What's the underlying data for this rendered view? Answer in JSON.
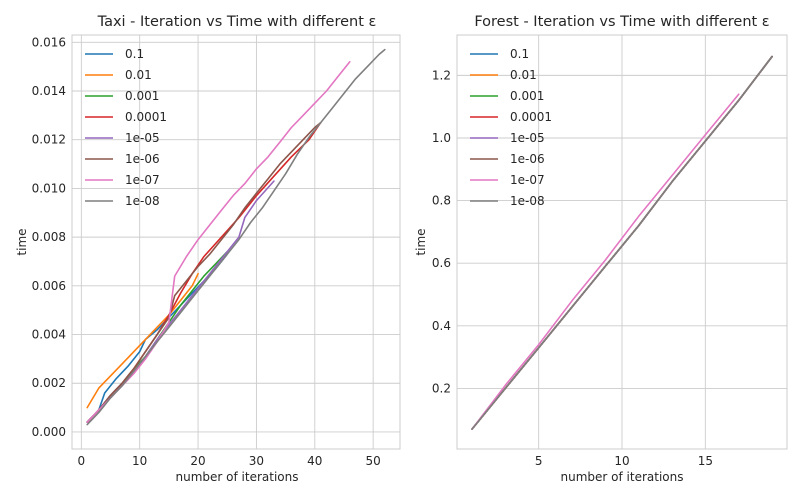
{
  "colors": [
    "#1f77b4",
    "#ff7f0e",
    "#2ca02c",
    "#d62728",
    "#9467bd",
    "#8c564b",
    "#e377c2",
    "#7f7f7f"
  ],
  "chart_data": [
    {
      "type": "line",
      "title": "Taxi - Iteration vs Time with different ε",
      "xlabel": "number of iterations",
      "ylabel": "time",
      "xlim": [
        -1.6,
        54.6
      ],
      "ylim": [
        -0.0007,
        0.0163
      ],
      "xticks": [
        0,
        10,
        20,
        30,
        40,
        50
      ],
      "yticks": [
        0.0,
        0.002,
        0.004,
        0.006,
        0.008,
        0.01,
        0.012,
        0.014,
        0.016
      ],
      "ytick_labels": [
        "0.000",
        "0.002",
        "0.004",
        "0.006",
        "0.008",
        "0.010",
        "0.012",
        "0.014",
        "0.016"
      ],
      "grid": true,
      "legend": "upper left",
      "series": [
        {
          "name": "0.1",
          "points": [
            [
              1,
              0.0004
            ],
            [
              3,
              0.0009
            ],
            [
              4,
              0.0016
            ],
            [
              6,
              0.0022
            ],
            [
              8,
              0.0027
            ],
            [
              10,
              0.0033
            ],
            [
              11,
              0.0038
            ],
            [
              13,
              0.0042
            ],
            [
              15,
              0.0047
            ],
            [
              17,
              0.0052
            ],
            [
              19,
              0.0057
            ],
            [
              21,
              0.0062
            ],
            [
              23,
              0.0067
            ],
            [
              25,
              0.0073
            ]
          ]
        },
        {
          "name": "0.01",
          "points": [
            [
              1,
              0.001
            ],
            [
              2,
              0.0014
            ],
            [
              3,
              0.0018
            ],
            [
              5,
              0.0023
            ],
            [
              7,
              0.0028
            ],
            [
              9,
              0.0033
            ],
            [
              11,
              0.0038
            ],
            [
              13,
              0.0043
            ],
            [
              15,
              0.0048
            ],
            [
              17,
              0.0054
            ],
            [
              19,
              0.006
            ],
            [
              20,
              0.0065
            ]
          ]
        },
        {
          "name": "0.001",
          "points": [
            [
              1,
              0.0004
            ],
            [
              3,
              0.0009
            ],
            [
              5,
              0.0015
            ],
            [
              7,
              0.002
            ],
            [
              9,
              0.0026
            ],
            [
              11,
              0.0031
            ],
            [
              13,
              0.0038
            ],
            [
              15,
              0.0045
            ],
            [
              17,
              0.0052
            ],
            [
              19,
              0.0058
            ],
            [
              21,
              0.0064
            ],
            [
              23,
              0.0069
            ],
            [
              25,
              0.0074
            ]
          ]
        },
        {
          "name": "0.0001",
          "points": [
            [
              1,
              0.0004
            ],
            [
              3,
              0.0009
            ],
            [
              5,
              0.0015
            ],
            [
              7,
              0.002
            ],
            [
              9,
              0.0026
            ],
            [
              11,
              0.0033
            ],
            [
              13,
              0.004
            ],
            [
              15,
              0.0048
            ],
            [
              17,
              0.0057
            ],
            [
              19,
              0.0065
            ],
            [
              21,
              0.0072
            ],
            [
              24,
              0.008
            ],
            [
              27,
              0.0088
            ],
            [
              30,
              0.0097
            ],
            [
              33,
              0.0105
            ],
            [
              36,
              0.0113
            ],
            [
              39,
              0.012
            ],
            [
              41,
              0.0127
            ]
          ]
        },
        {
          "name": "1e-05",
          "points": [
            [
              1,
              0.0004
            ],
            [
              3,
              0.0009
            ],
            [
              5,
              0.0015
            ],
            [
              7,
              0.002
            ],
            [
              9,
              0.0025
            ],
            [
              11,
              0.0031
            ],
            [
              13,
              0.0038
            ],
            [
              15,
              0.0044
            ],
            [
              17,
              0.005
            ],
            [
              19,
              0.0056
            ],
            [
              21,
              0.0062
            ],
            [
              23,
              0.0068
            ],
            [
              25,
              0.0074
            ],
            [
              27,
              0.008
            ],
            [
              28,
              0.0088
            ],
            [
              30,
              0.0095
            ],
            [
              33,
              0.0103
            ]
          ]
        },
        {
          "name": "1e-06",
          "points": [
            [
              1,
              0.0004
            ],
            [
              3,
              0.0009
            ],
            [
              5,
              0.0015
            ],
            [
              7,
              0.002
            ],
            [
              9,
              0.0026
            ],
            [
              11,
              0.0033
            ],
            [
              13,
              0.004
            ],
            [
              15,
              0.0047
            ],
            [
              16,
              0.0056
            ],
            [
              18,
              0.0062
            ],
            [
              20,
              0.0068
            ],
            [
              22,
              0.0073
            ],
            [
              24,
              0.0079
            ],
            [
              26,
              0.0085
            ],
            [
              28,
              0.0092
            ],
            [
              30,
              0.0098
            ],
            [
              32,
              0.0104
            ],
            [
              34,
              0.011
            ],
            [
              36,
              0.0115
            ],
            [
              38,
              0.012
            ],
            [
              40,
              0.0125
            ],
            [
              41,
              0.0127
            ]
          ]
        },
        {
          "name": "1e-07",
          "points": [
            [
              1,
              0.0004
            ],
            [
              3,
              0.0009
            ],
            [
              5,
              0.0014
            ],
            [
              7,
              0.0019
            ],
            [
              9,
              0.0024
            ],
            [
              11,
              0.003
            ],
            [
              13,
              0.0037
            ],
            [
              15,
              0.0045
            ],
            [
              16,
              0.0064
            ],
            [
              18,
              0.0072
            ],
            [
              20,
              0.0079
            ],
            [
              22,
              0.0085
            ],
            [
              24,
              0.0091
            ],
            [
              26,
              0.0097
            ],
            [
              28,
              0.0102
            ],
            [
              30,
              0.0108
            ],
            [
              32,
              0.0113
            ],
            [
              34,
              0.0119
            ],
            [
              36,
              0.0125
            ],
            [
              38,
              0.013
            ],
            [
              40,
              0.0135
            ],
            [
              42,
              0.014
            ],
            [
              44,
              0.0146
            ],
            [
              46,
              0.0152
            ]
          ]
        },
        {
          "name": "1e-08",
          "points": [
            [
              1,
              0.0003
            ],
            [
              3,
              0.0008
            ],
            [
              5,
              0.0014
            ],
            [
              7,
              0.0019
            ],
            [
              9,
              0.0025
            ],
            [
              11,
              0.0031
            ],
            [
              13,
              0.0037
            ],
            [
              15,
              0.0043
            ],
            [
              17,
              0.0049
            ],
            [
              19,
              0.0055
            ],
            [
              21,
              0.0061
            ],
            [
              23,
              0.0067
            ],
            [
              25,
              0.0073
            ],
            [
              27,
              0.0079
            ],
            [
              29,
              0.0086
            ],
            [
              31,
              0.0092
            ],
            [
              33,
              0.0099
            ],
            [
              35,
              0.0106
            ],
            [
              37,
              0.0114
            ],
            [
              39,
              0.0121
            ],
            [
              41,
              0.0127
            ],
            [
              43,
              0.0133
            ],
            [
              45,
              0.0139
            ],
            [
              47,
              0.0145
            ],
            [
              49,
              0.015
            ],
            [
              51,
              0.0155
            ],
            [
              52,
              0.0157
            ]
          ]
        }
      ]
    },
    {
      "type": "line",
      "title": "Forest - Iteration vs Time with different ε",
      "xlabel": "number of iterations",
      "ylabel": "time",
      "xlim": [
        0.1,
        19.9
      ],
      "ylim": [
        0.0065,
        1.329
      ],
      "xticks": [
        5,
        10,
        15
      ],
      "yticks": [
        0.2,
        0.4,
        0.6,
        0.8,
        1.0,
        1.2
      ],
      "ytick_labels": [
        "0.2",
        "0.4",
        "0.6",
        "0.8",
        "1.0",
        "1.2"
      ],
      "grid": true,
      "legend": "upper left",
      "series": [
        {
          "name": "0.1",
          "points": [
            [
              1,
              0.07
            ],
            [
              3,
              0.2
            ],
            [
              5,
              0.33
            ],
            [
              7,
              0.46
            ],
            [
              9,
              0.59
            ],
            [
              11,
              0.72
            ],
            [
              13,
              0.86
            ],
            [
              15,
              0.99
            ],
            [
              17,
              1.12
            ],
            [
              19,
              1.26
            ]
          ]
        },
        {
          "name": "0.01",
          "points": [
            [
              1,
              0.07
            ],
            [
              3,
              0.2
            ],
            [
              5,
              0.33
            ],
            [
              7,
              0.46
            ],
            [
              9,
              0.59
            ],
            [
              11,
              0.72
            ],
            [
              13,
              0.86
            ],
            [
              15,
              0.99
            ],
            [
              17,
              1.12
            ],
            [
              19,
              1.26
            ]
          ]
        },
        {
          "name": "0.001",
          "points": [
            [
              1,
              0.07
            ],
            [
              3,
              0.2
            ],
            [
              5,
              0.33
            ],
            [
              7,
              0.46
            ],
            [
              9,
              0.59
            ],
            [
              11,
              0.72
            ],
            [
              13,
              0.86
            ],
            [
              15,
              0.99
            ],
            [
              17,
              1.12
            ],
            [
              19,
              1.26
            ]
          ]
        },
        {
          "name": "0.0001",
          "points": [
            [
              1,
              0.07
            ],
            [
              3,
              0.2
            ],
            [
              5,
              0.33
            ],
            [
              7,
              0.46
            ],
            [
              9,
              0.59
            ],
            [
              11,
              0.72
            ],
            [
              13,
              0.86
            ],
            [
              15,
              0.99
            ],
            [
              17,
              1.12
            ],
            [
              19,
              1.26
            ]
          ]
        },
        {
          "name": "1e-05",
          "points": [
            [
              1,
              0.07
            ],
            [
              3,
              0.2
            ],
            [
              5,
              0.33
            ],
            [
              7,
              0.46
            ],
            [
              9,
              0.59
            ],
            [
              11,
              0.72
            ],
            [
              13,
              0.86
            ],
            [
              15,
              0.99
            ],
            [
              17,
              1.12
            ],
            [
              19,
              1.26
            ]
          ]
        },
        {
          "name": "1e-06",
          "points": [
            [
              1,
              0.07
            ],
            [
              3,
              0.2
            ],
            [
              5,
              0.33
            ],
            [
              7,
              0.46
            ],
            [
              9,
              0.59
            ],
            [
              11,
              0.72
            ],
            [
              13,
              0.86
            ],
            [
              15,
              0.99
            ],
            [
              17,
              1.12
            ],
            [
              19,
              1.26
            ]
          ]
        },
        {
          "name": "1e-07",
          "points": [
            [
              1,
              0.07
            ],
            [
              3,
              0.21
            ],
            [
              5,
              0.34
            ],
            [
              7,
              0.48
            ],
            [
              9,
              0.61
            ],
            [
              11,
              0.75
            ],
            [
              13,
              0.88
            ],
            [
              15,
              1.01
            ],
            [
              17,
              1.14
            ]
          ]
        },
        {
          "name": "1e-08",
          "points": [
            [
              1,
              0.07
            ],
            [
              3,
              0.2
            ],
            [
              5,
              0.33
            ],
            [
              7,
              0.46
            ],
            [
              9,
              0.59
            ],
            [
              11,
              0.72
            ],
            [
              13,
              0.86
            ],
            [
              15,
              0.99
            ],
            [
              17,
              1.12
            ],
            [
              19,
              1.26
            ]
          ]
        }
      ]
    }
  ]
}
